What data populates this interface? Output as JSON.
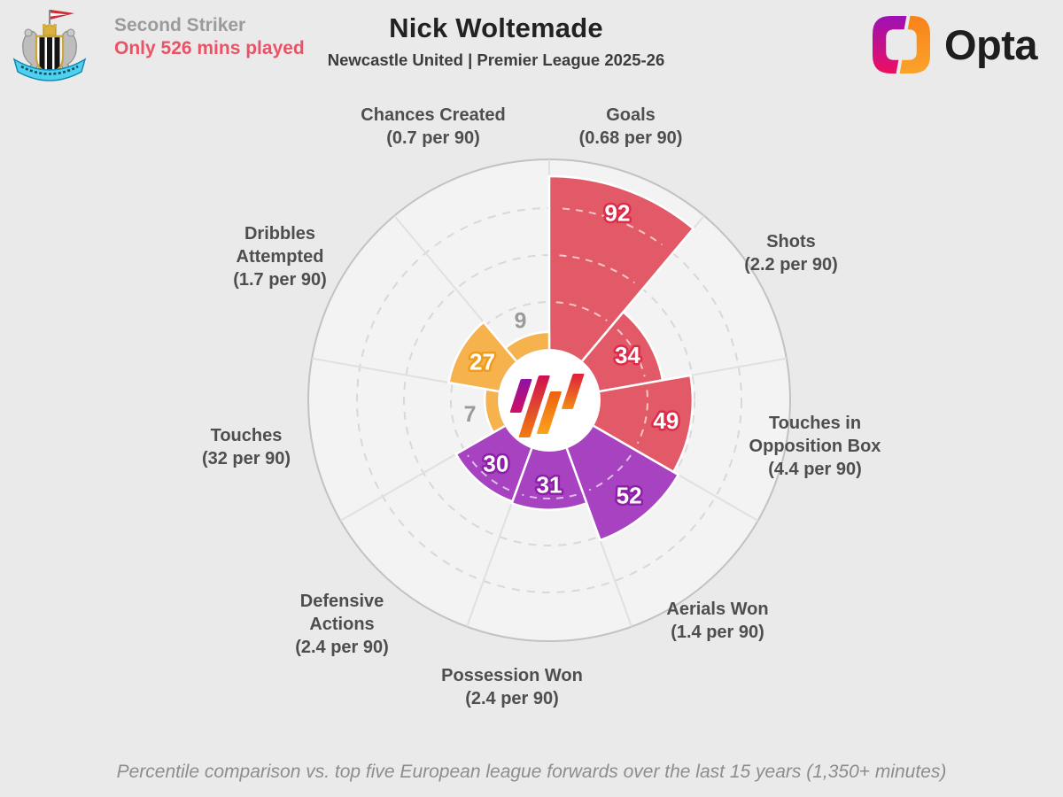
{
  "header": {
    "role_label": "Second Striker",
    "minutes_note": "Only 526 mins played",
    "club_badge": "Newcastle United crest",
    "brand": "Opta"
  },
  "palette": {
    "attacking": "#e25a67",
    "attacking_outline": "#dd2b49",
    "defending": "#a742c0",
    "defending_outline": "#8e1fa8",
    "possession": "#f5b24d",
    "possession_outline": "#ef9c1c",
    "small_value_text": "#9a9a9a",
    "accent_red": "#ea5366",
    "chart_fill": "#f3f3f3",
    "ring_stroke": "#c2c2c2",
    "grid_dash": "#d8d8d8",
    "spoke": "#e0e0e0"
  },
  "chart_data": {
    "type": "pizza",
    "title": "Nick Woltemade",
    "subtitle": "Newcastle United | Premier League 2025-26",
    "footnote": "Percentile comparison vs. top five European league forwards over the last 15 years (1,350+ minutes)",
    "scale": [
      0,
      100
    ],
    "gridlines_percent": [
      25,
      50,
      75
    ],
    "legend": "none",
    "slices": [
      {
        "stat": "Goals",
        "per90": "(0.68 per 90)",
        "value": 92,
        "group": "attacking"
      },
      {
        "stat": "Shots",
        "per90": "(2.2 per 90)",
        "value": 34,
        "group": "attacking"
      },
      {
        "stat": "Touches in Opposition Box",
        "per90": "(4.4 per 90)",
        "value": 49,
        "group": "attacking"
      },
      {
        "stat": "Aerials Won",
        "per90": "(1.4 per 90)",
        "value": 52,
        "group": "defending"
      },
      {
        "stat": "Possession Won",
        "per90": "(2.4 per 90)",
        "value": 31,
        "group": "defending"
      },
      {
        "stat": "Defensive Actions",
        "per90": "(2.4 per 90)",
        "value": 30,
        "group": "defending"
      },
      {
        "stat": "Touches",
        "per90": "(32 per 90)",
        "value": 7,
        "group": "possession"
      },
      {
        "stat": "Dribbles Attempted",
        "per90": "(1.7 per 90)",
        "value": 27,
        "group": "possession"
      },
      {
        "stat": "Chances Created",
        "per90": "(0.7 per 90)",
        "value": 9,
        "group": "possession"
      }
    ]
  }
}
